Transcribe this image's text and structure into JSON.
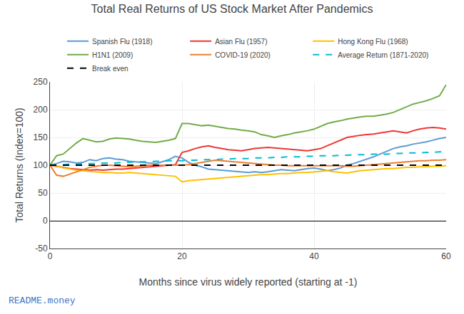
{
  "chart_data": {
    "type": "line",
    "title": "Total Real Returns of US Stock Market After Pandemics",
    "x_label": "Months since virus widely reported (starting at -1)",
    "y_label": "Total Returns (Index=100)",
    "annotations": [
      "README.money"
    ],
    "x": [
      0,
      1,
      2,
      3,
      4,
      5,
      6,
      7,
      8,
      9,
      10,
      11,
      12,
      13,
      14,
      15,
      16,
      17,
      18,
      19,
      20,
      21,
      22,
      23,
      24,
      25,
      26,
      27,
      28,
      29,
      30,
      31,
      32,
      33,
      34,
      35,
      36,
      37,
      38,
      39,
      40,
      41,
      42,
      43,
      44,
      45,
      46,
      47,
      48,
      49,
      50,
      51,
      52,
      53,
      54,
      55,
      56,
      57,
      58,
      59,
      60
    ],
    "xlim": [
      0,
      60
    ],
    "xticks": [
      0,
      20,
      40,
      60
    ],
    "ylim": [
      -50,
      250
    ],
    "yticks": [
      -50,
      0,
      50,
      100,
      150,
      200,
      250
    ],
    "grid": true,
    "legend": "top",
    "series": [
      {
        "name": "Spanish Flu (1918)",
        "color": "#5b9bd5",
        "line_style": "solid",
        "values": [
          100,
          103,
          107,
          106,
          104,
          105,
          110,
          108,
          112,
          113,
          111,
          110,
          107,
          106,
          105,
          104,
          103,
          106,
          110,
          116,
          113,
          105,
          100,
          97,
          93,
          92,
          91,
          90,
          89,
          88,
          87,
          88,
          87,
          88,
          90,
          92,
          91,
          90,
          92,
          94,
          95,
          93,
          90,
          92,
          95,
          100,
          103,
          107,
          110,
          115,
          120,
          125,
          130,
          133,
          135,
          138,
          140,
          142,
          145,
          148,
          150
        ]
      },
      {
        "name": "Asian Flu (1957)",
        "color": "#ed3833",
        "line_style": "solid",
        "values": [
          100,
          98,
          96,
          94,
          93,
          92,
          91,
          92,
          91,
          92,
          93,
          93,
          94,
          95,
          96,
          97,
          98,
          99,
          100,
          101,
          123,
          126,
          130,
          133,
          135,
          132,
          130,
          128,
          127,
          126,
          128,
          130,
          131,
          132,
          131,
          130,
          129,
          128,
          127,
          126,
          128,
          130,
          135,
          140,
          145,
          150,
          152,
          154,
          155,
          156,
          158,
          160,
          162,
          160,
          158,
          162,
          165,
          167,
          168,
          167,
          165
        ]
      },
      {
        "name": "Hong Kong Flu (1968)",
        "color": "#ffc000",
        "line_style": "solid",
        "values": [
          100,
          99,
          95,
          93,
          91,
          90,
          89,
          88,
          87,
          87,
          86,
          86,
          87,
          86,
          85,
          84,
          83,
          82,
          81,
          80,
          70,
          72,
          73,
          74,
          75,
          76,
          77,
          78,
          79,
          80,
          81,
          82,
          83,
          83,
          84,
          85,
          85,
          86,
          87,
          87,
          88,
          89,
          90,
          88,
          87,
          86,
          88,
          90,
          91,
          92,
          93,
          94,
          94,
          95,
          96,
          96,
          97,
          97,
          98,
          98,
          99
        ]
      },
      {
        "name": "H1N1 (2009)",
        "color": "#70ad47",
        "line_style": "solid",
        "values": [
          100,
          117,
          120,
          130,
          140,
          148,
          145,
          142,
          143,
          147,
          149,
          148,
          147,
          145,
          143,
          142,
          141,
          143,
          145,
          148,
          175,
          175,
          173,
          171,
          172,
          170,
          168,
          166,
          165,
          163,
          162,
          160,
          155,
          153,
          150,
          153,
          155,
          158,
          160,
          162,
          165,
          170,
          175,
          178,
          180,
          183,
          185,
          187,
          188,
          188,
          190,
          192,
          195,
          200,
          205,
          210,
          213,
          216,
          220,
          225,
          245
        ]
      },
      {
        "name": "COVID-19 (2020)",
        "color": "#ed7d31",
        "line_style": "solid",
        "values": [
          100,
          82,
          80,
          84,
          88,
          92,
          96,
          98,
          100,
          100,
          99,
          98,
          97,
          98,
          99,
          100,
          100,
          100,
          100,
          100,
          100,
          101,
          103,
          105,
          107,
          109,
          108,
          107,
          106,
          105,
          104,
          103,
          102,
          101,
          100,
          100,
          99,
          99,
          99,
          99,
          99,
          99,
          99,
          99,
          99,
          98,
          98,
          99,
          100,
          101,
          102,
          103,
          104,
          105,
          106,
          107,
          108,
          108,
          109,
          109,
          110
        ]
      },
      {
        "name": "Average Return (1871-2020)",
        "color": "#00bcd4",
        "line_style": "dashed",
        "values": [
          100,
          101,
          101,
          102,
          102,
          103,
          103,
          103,
          104,
          104,
          104,
          105,
          105,
          106,
          106,
          106,
          107,
          107,
          108,
          108,
          108,
          109,
          109,
          110,
          110,
          110,
          111,
          111,
          112,
          112,
          112,
          113,
          113,
          113,
          114,
          114,
          115,
          115,
          115,
          116,
          116,
          117,
          117,
          117,
          118,
          118,
          119,
          119,
          119,
          120,
          120,
          120,
          121,
          121,
          122,
          122,
          122,
          123,
          123,
          124,
          124
        ]
      },
      {
        "name": "Break even",
        "color": "#000000",
        "line_style": "dashed",
        "values": [
          100,
          100,
          100,
          100,
          100,
          100,
          100,
          100,
          100,
          100,
          100,
          100,
          100,
          100,
          100,
          100,
          100,
          100,
          100,
          100,
          100,
          100,
          100,
          100,
          100,
          100,
          100,
          100,
          100,
          100,
          100,
          100,
          100,
          100,
          100,
          100,
          100,
          100,
          100,
          100,
          100,
          100,
          100,
          100,
          100,
          100,
          100,
          100,
          100,
          100,
          100,
          100,
          100,
          100,
          100,
          100,
          100,
          100,
          100,
          100,
          100
        ]
      }
    ]
  }
}
